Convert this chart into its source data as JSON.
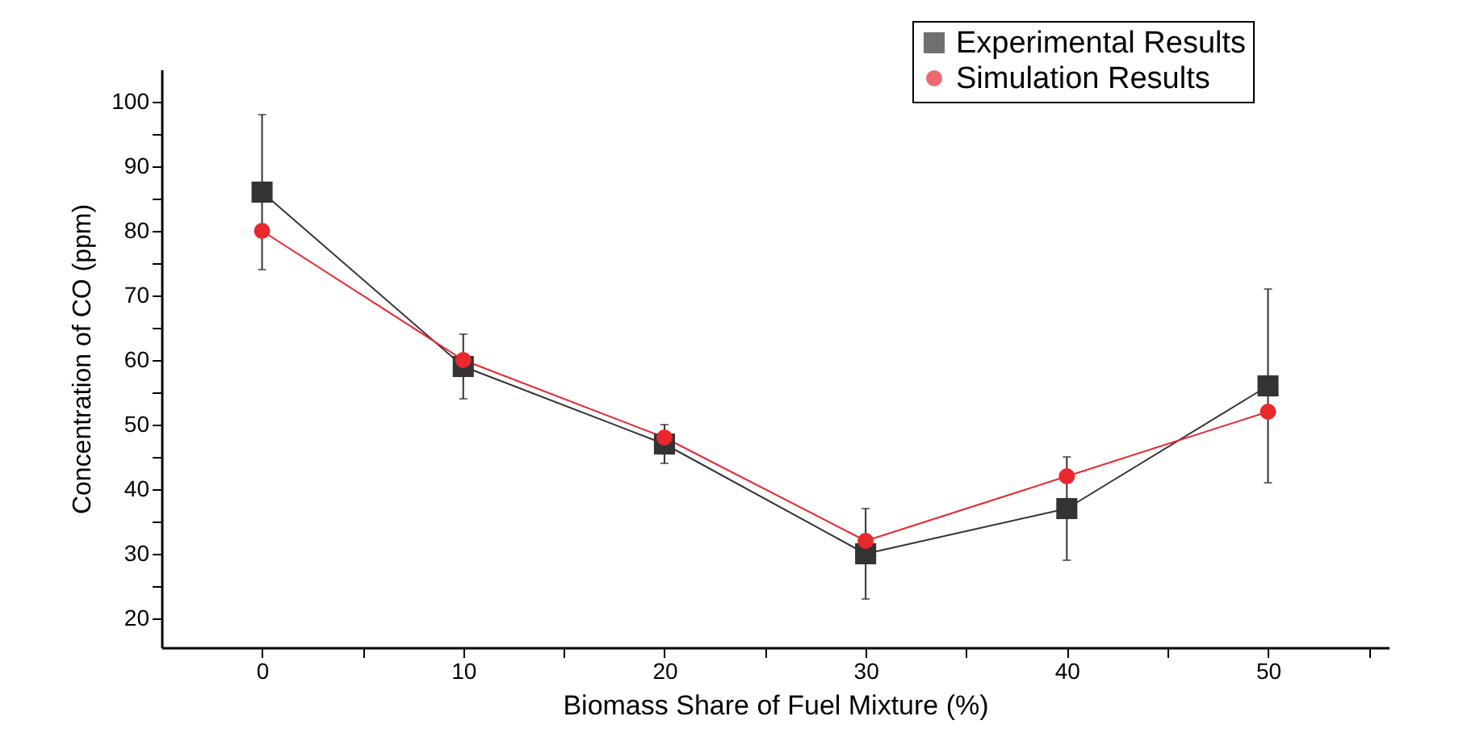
{
  "chart_data": {
    "type": "line",
    "xlabel": "Biomass Share of Fuel Mixture (%)",
    "ylabel": "Concentration of CO (ppm)",
    "x": [
      0,
      10,
      20,
      30,
      40,
      50
    ],
    "series": [
      {
        "name": "Experimental Results",
        "color": "#333333",
        "marker": "square",
        "values": [
          86,
          59,
          47,
          30,
          37,
          56
        ],
        "errors": [
          12,
          5,
          3,
          7,
          8,
          15
        ]
      },
      {
        "name": "Simulation Results",
        "color": "#e8282d",
        "marker": "circle",
        "values": [
          80,
          60,
          48,
          32,
          42,
          52
        ]
      }
    ],
    "xlim": [
      -5,
      56
    ],
    "xticks": [
      0,
      {
        "value": 5,
        "label": null
      },
      10,
      {
        "value": 15,
        "label": null
      },
      20,
      {
        "value": 25,
        "label": null
      },
      30,
      {
        "value": 35,
        "label": null
      },
      40,
      {
        "value": 45,
        "label": null
      },
      50,
      {
        "value": 55,
        "label": null
      }
    ],
    "ylim": [
      15.5,
      105
    ],
    "yticks": [
      20,
      {
        "value": 25,
        "label": null
      },
      30,
      {
        "value": 35,
        "label": null
      },
      40,
      {
        "value": 45,
        "label": null
      },
      50,
      {
        "value": 55,
        "label": null
      },
      60,
      {
        "value": 65,
        "label": null
      },
      70,
      {
        "value": 75,
        "label": null
      },
      80,
      {
        "value": 85,
        "label": null
      },
      90,
      {
        "value": 95,
        "label": null
      },
      100
    ],
    "grid": false,
    "legend": "top right",
    "line_style": "solid"
  }
}
